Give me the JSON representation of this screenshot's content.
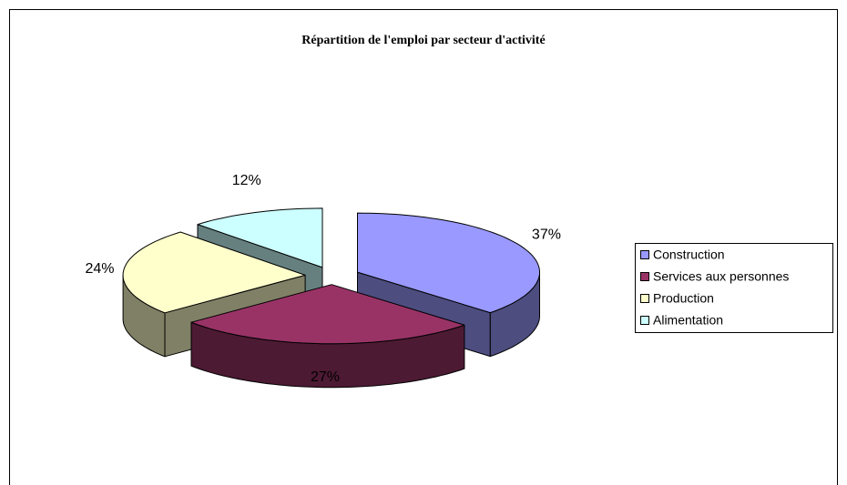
{
  "chart_data": {
    "type": "pie3d",
    "title": "Répartition de l'emploi par secteur d'activité",
    "categories": [
      "Construction",
      "Services aux personnes",
      "Production",
      "Alimentation"
    ],
    "values": [
      37,
      27,
      24,
      12
    ],
    "value_labels": [
      "37%",
      "27%",
      "24%",
      "12%"
    ],
    "colors": [
      "#9999ff",
      "#993366",
      "#ffffcc",
      "#ccffff"
    ],
    "side_colors": [
      "#4d4d80",
      "#4d1a33",
      "#808066",
      "#668080"
    ],
    "legend": "right"
  }
}
